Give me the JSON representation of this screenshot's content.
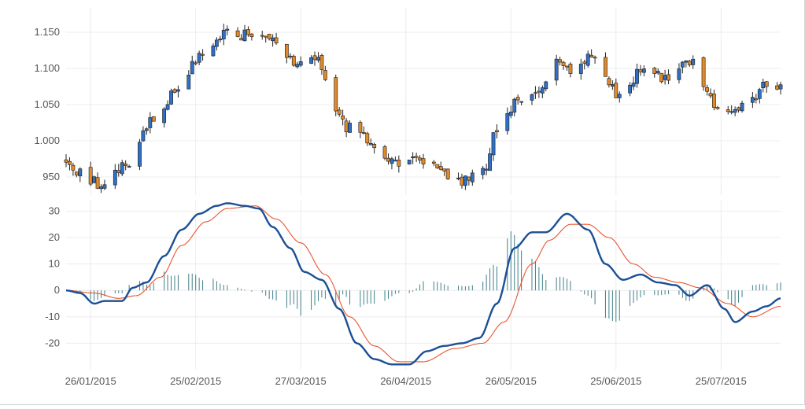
{
  "chart_data": [
    {
      "type": "candlestick",
      "panel": "price",
      "y_ticks": [
        "1.150",
        "1.100",
        "1.050",
        "1.000",
        "950"
      ],
      "ylim": [
        0.925,
        1.175
      ],
      "grid": true,
      "colors": {
        "up": "#2f6fc4",
        "down": "#e08a2c",
        "wick": "#222222",
        "border": "#1a1a1a"
      },
      "anchors": [
        {
          "date": "2015-01-19",
          "close": 0.972
        },
        {
          "date": "2015-01-23",
          "close": 0.955
        },
        {
          "date": "2015-01-29",
          "close": 0.938
        },
        {
          "date": "2015-02-05",
          "close": 0.967
        },
        {
          "date": "2015-02-13",
          "close": 1.032
        },
        {
          "date": "2015-02-20",
          "close": 1.075
        },
        {
          "date": "2015-02-27",
          "close": 1.122
        },
        {
          "date": "2015-03-05",
          "close": 1.15
        },
        {
          "date": "2015-03-13",
          "close": 1.145
        },
        {
          "date": "2015-03-20",
          "close": 1.14
        },
        {
          "date": "2015-03-25",
          "close": 1.108
        },
        {
          "date": "2015-03-31",
          "close": 1.115
        },
        {
          "date": "2015-04-09",
          "close": 1.02
        },
        {
          "date": "2015-04-17",
          "close": 0.995
        },
        {
          "date": "2015-04-22",
          "close": 0.97
        },
        {
          "date": "2015-04-28",
          "close": 0.975
        },
        {
          "date": "2015-05-05",
          "close": 0.962
        },
        {
          "date": "2015-05-12",
          "close": 0.945
        },
        {
          "date": "2015-05-18",
          "close": 0.96
        },
        {
          "date": "2015-05-22",
          "close": 1.015
        },
        {
          "date": "2015-05-28",
          "close": 1.055
        },
        {
          "date": "2015-06-04",
          "close": 1.075
        },
        {
          "date": "2015-06-08",
          "close": 1.11
        },
        {
          "date": "2015-06-12",
          "close": 1.095
        },
        {
          "date": "2015-06-18",
          "close": 1.115
        },
        {
          "date": "2015-06-26",
          "close": 1.065
        },
        {
          "date": "2015-07-03",
          "close": 1.1
        },
        {
          "date": "2015-07-10",
          "close": 1.085
        },
        {
          "date": "2015-07-17",
          "close": 1.112
        },
        {
          "date": "2015-07-23",
          "close": 1.05
        },
        {
          "date": "2015-07-27",
          "close": 1.035
        },
        {
          "date": "2015-08-03",
          "close": 1.055
        },
        {
          "date": "2015-08-06",
          "close": 1.075
        }
      ]
    },
    {
      "type": "line+bar",
      "panel": "macd",
      "y_ticks": [
        "30",
        "20",
        "10",
        "0",
        "-10",
        "-20"
      ],
      "ylim": [
        -30,
        34
      ],
      "grid": true,
      "series": [
        {
          "kind": "line",
          "color": "#1b4f96",
          "points": [
            {
              "date": "2015-01-19",
              "value": 0
            },
            {
              "date": "2015-01-23",
              "value": -1
            },
            {
              "date": "2015-01-27",
              "value": -5
            },
            {
              "date": "2015-01-30",
              "value": -4
            },
            {
              "date": "2015-02-04",
              "value": -4
            },
            {
              "date": "2015-02-07",
              "value": 1
            },
            {
              "date": "2015-02-11",
              "value": 3
            },
            {
              "date": "2015-02-16",
              "value": 13
            },
            {
              "date": "2015-02-21",
              "value": 23
            },
            {
              "date": "2015-02-26",
              "value": 29
            },
            {
              "date": "2015-03-03",
              "value": 32
            },
            {
              "date": "2015-03-06",
              "value": 33
            },
            {
              "date": "2015-03-11",
              "value": 32
            },
            {
              "date": "2015-03-15",
              "value": 31
            },
            {
              "date": "2015-03-19",
              "value": 24
            },
            {
              "date": "2015-03-24",
              "value": 16
            },
            {
              "date": "2015-03-28",
              "value": 7
            },
            {
              "date": "2015-04-02",
              "value": 4
            },
            {
              "date": "2015-04-07",
              "value": -7
            },
            {
              "date": "2015-04-12",
              "value": -20
            },
            {
              "date": "2015-04-17",
              "value": -26
            },
            {
              "date": "2015-04-22",
              "value": -28
            },
            {
              "date": "2015-04-27",
              "value": -28
            },
            {
              "date": "2015-05-02",
              "value": -23
            },
            {
              "date": "2015-05-07",
              "value": -21
            },
            {
              "date": "2015-05-12",
              "value": -20
            },
            {
              "date": "2015-05-17",
              "value": -18
            },
            {
              "date": "2015-05-22",
              "value": -5
            },
            {
              "date": "2015-05-27",
              "value": 16
            },
            {
              "date": "2015-06-01",
              "value": 22
            },
            {
              "date": "2015-06-05",
              "value": 22
            },
            {
              "date": "2015-06-11",
              "value": 29
            },
            {
              "date": "2015-06-17",
              "value": 23
            },
            {
              "date": "2015-06-22",
              "value": 10
            },
            {
              "date": "2015-06-27",
              "value": 4
            },
            {
              "date": "2015-07-02",
              "value": 6
            },
            {
              "date": "2015-07-07",
              "value": 3
            },
            {
              "date": "2015-07-12",
              "value": 2
            },
            {
              "date": "2015-07-16",
              "value": -2
            },
            {
              "date": "2015-07-21",
              "value": 2
            },
            {
              "date": "2015-07-26",
              "value": -7
            },
            {
              "date": "2015-07-29",
              "value": -12
            },
            {
              "date": "2015-08-03",
              "value": -8
            },
            {
              "date": "2015-08-07",
              "value": -6
            },
            {
              "date": "2015-08-11",
              "value": -3
            }
          ]
        },
        {
          "kind": "line",
          "color": "#e8552e",
          "points": [
            {
              "date": "2015-01-19",
              "value": 0
            },
            {
              "date": "2015-01-27",
              "value": -1
            },
            {
              "date": "2015-02-03",
              "value": -3
            },
            {
              "date": "2015-02-08",
              "value": -2
            },
            {
              "date": "2015-02-15",
              "value": 5
            },
            {
              "date": "2015-02-21",
              "value": 17
            },
            {
              "date": "2015-02-28",
              "value": 26
            },
            {
              "date": "2015-03-06",
              "value": 31
            },
            {
              "date": "2015-03-14",
              "value": 32
            },
            {
              "date": "2015-03-20",
              "value": 27
            },
            {
              "date": "2015-03-27",
              "value": 18
            },
            {
              "date": "2015-04-03",
              "value": 6
            },
            {
              "date": "2015-04-10",
              "value": -10
            },
            {
              "date": "2015-04-17",
              "value": -21
            },
            {
              "date": "2015-04-24",
              "value": -27
            },
            {
              "date": "2015-05-01",
              "value": -27
            },
            {
              "date": "2015-05-10",
              "value": -22
            },
            {
              "date": "2015-05-18",
              "value": -20
            },
            {
              "date": "2015-05-24",
              "value": -12
            },
            {
              "date": "2015-06-01",
              "value": 10
            },
            {
              "date": "2015-06-06",
              "value": 19
            },
            {
              "date": "2015-06-12",
              "value": 25
            },
            {
              "date": "2015-06-17",
              "value": 25
            },
            {
              "date": "2015-06-23",
              "value": 20
            },
            {
              "date": "2015-06-30",
              "value": 10
            },
            {
              "date": "2015-07-06",
              "value": 5
            },
            {
              "date": "2015-07-13",
              "value": 3
            },
            {
              "date": "2015-07-19",
              "value": 1
            },
            {
              "date": "2015-07-27",
              "value": -5
            },
            {
              "date": "2015-08-03",
              "value": -10
            },
            {
              "date": "2015-08-11",
              "value": -6
            }
          ]
        },
        {
          "kind": "histogram",
          "color": "#3f7f8a",
          "value_rule": "first series minus second series, per trading day"
        }
      ]
    }
  ],
  "x_axis": {
    "start": "2015-01-19",
    "end": "2015-08-11",
    "ticks": [
      {
        "date": "2015-01-26",
        "label": "26/01/2015"
      },
      {
        "date": "2015-02-25",
        "label": "25/02/2015"
      },
      {
        "date": "2015-03-27",
        "label": "27/03/2015"
      },
      {
        "date": "2015-04-26",
        "label": "26/04/2015"
      },
      {
        "date": "2015-05-26",
        "label": "26/05/2015"
      },
      {
        "date": "2015-06-25",
        "label": "25/06/2015"
      },
      {
        "date": "2015-07-25",
        "label": "25/07/2015"
      }
    ]
  }
}
